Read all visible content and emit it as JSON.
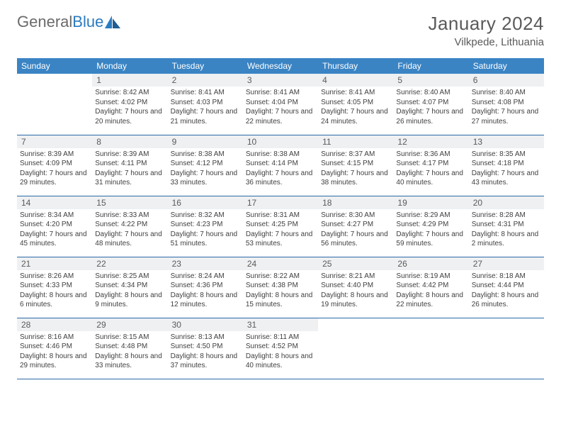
{
  "logo": {
    "text_a": "General",
    "text_b": "Blue"
  },
  "title": "January 2024",
  "location": "Vilkpede, Lithuania",
  "colors": {
    "header_bg": "#3a84c4",
    "header_text": "#ffffff",
    "daynum_bg": "#eef0f2",
    "border": "#2b6aa8",
    "text": "#404040",
    "logo_gray": "#6a6a6a",
    "logo_blue": "#2b7bbf"
  },
  "day_headers": [
    "Sunday",
    "Monday",
    "Tuesday",
    "Wednesday",
    "Thursday",
    "Friday",
    "Saturday"
  ],
  "weeks": [
    [
      {
        "n": ""
      },
      {
        "n": "1",
        "sr": "Sunrise: 8:42 AM",
        "ss": "Sunset: 4:02 PM",
        "dl": "Daylight: 7 hours and 20 minutes."
      },
      {
        "n": "2",
        "sr": "Sunrise: 8:41 AM",
        "ss": "Sunset: 4:03 PM",
        "dl": "Daylight: 7 hours and 21 minutes."
      },
      {
        "n": "3",
        "sr": "Sunrise: 8:41 AM",
        "ss": "Sunset: 4:04 PM",
        "dl": "Daylight: 7 hours and 22 minutes."
      },
      {
        "n": "4",
        "sr": "Sunrise: 8:41 AM",
        "ss": "Sunset: 4:05 PM",
        "dl": "Daylight: 7 hours and 24 minutes."
      },
      {
        "n": "5",
        "sr": "Sunrise: 8:40 AM",
        "ss": "Sunset: 4:07 PM",
        "dl": "Daylight: 7 hours and 26 minutes."
      },
      {
        "n": "6",
        "sr": "Sunrise: 8:40 AM",
        "ss": "Sunset: 4:08 PM",
        "dl": "Daylight: 7 hours and 27 minutes."
      }
    ],
    [
      {
        "n": "7",
        "sr": "Sunrise: 8:39 AM",
        "ss": "Sunset: 4:09 PM",
        "dl": "Daylight: 7 hours and 29 minutes."
      },
      {
        "n": "8",
        "sr": "Sunrise: 8:39 AM",
        "ss": "Sunset: 4:11 PM",
        "dl": "Daylight: 7 hours and 31 minutes."
      },
      {
        "n": "9",
        "sr": "Sunrise: 8:38 AM",
        "ss": "Sunset: 4:12 PM",
        "dl": "Daylight: 7 hours and 33 minutes."
      },
      {
        "n": "10",
        "sr": "Sunrise: 8:38 AM",
        "ss": "Sunset: 4:14 PM",
        "dl": "Daylight: 7 hours and 36 minutes."
      },
      {
        "n": "11",
        "sr": "Sunrise: 8:37 AM",
        "ss": "Sunset: 4:15 PM",
        "dl": "Daylight: 7 hours and 38 minutes."
      },
      {
        "n": "12",
        "sr": "Sunrise: 8:36 AM",
        "ss": "Sunset: 4:17 PM",
        "dl": "Daylight: 7 hours and 40 minutes."
      },
      {
        "n": "13",
        "sr": "Sunrise: 8:35 AM",
        "ss": "Sunset: 4:18 PM",
        "dl": "Daylight: 7 hours and 43 minutes."
      }
    ],
    [
      {
        "n": "14",
        "sr": "Sunrise: 8:34 AM",
        "ss": "Sunset: 4:20 PM",
        "dl": "Daylight: 7 hours and 45 minutes."
      },
      {
        "n": "15",
        "sr": "Sunrise: 8:33 AM",
        "ss": "Sunset: 4:22 PM",
        "dl": "Daylight: 7 hours and 48 minutes."
      },
      {
        "n": "16",
        "sr": "Sunrise: 8:32 AM",
        "ss": "Sunset: 4:23 PM",
        "dl": "Daylight: 7 hours and 51 minutes."
      },
      {
        "n": "17",
        "sr": "Sunrise: 8:31 AM",
        "ss": "Sunset: 4:25 PM",
        "dl": "Daylight: 7 hours and 53 minutes."
      },
      {
        "n": "18",
        "sr": "Sunrise: 8:30 AM",
        "ss": "Sunset: 4:27 PM",
        "dl": "Daylight: 7 hours and 56 minutes."
      },
      {
        "n": "19",
        "sr": "Sunrise: 8:29 AM",
        "ss": "Sunset: 4:29 PM",
        "dl": "Daylight: 7 hours and 59 minutes."
      },
      {
        "n": "20",
        "sr": "Sunrise: 8:28 AM",
        "ss": "Sunset: 4:31 PM",
        "dl": "Daylight: 8 hours and 2 minutes."
      }
    ],
    [
      {
        "n": "21",
        "sr": "Sunrise: 8:26 AM",
        "ss": "Sunset: 4:33 PM",
        "dl": "Daylight: 8 hours and 6 minutes."
      },
      {
        "n": "22",
        "sr": "Sunrise: 8:25 AM",
        "ss": "Sunset: 4:34 PM",
        "dl": "Daylight: 8 hours and 9 minutes."
      },
      {
        "n": "23",
        "sr": "Sunrise: 8:24 AM",
        "ss": "Sunset: 4:36 PM",
        "dl": "Daylight: 8 hours and 12 minutes."
      },
      {
        "n": "24",
        "sr": "Sunrise: 8:22 AM",
        "ss": "Sunset: 4:38 PM",
        "dl": "Daylight: 8 hours and 15 minutes."
      },
      {
        "n": "25",
        "sr": "Sunrise: 8:21 AM",
        "ss": "Sunset: 4:40 PM",
        "dl": "Daylight: 8 hours and 19 minutes."
      },
      {
        "n": "26",
        "sr": "Sunrise: 8:19 AM",
        "ss": "Sunset: 4:42 PM",
        "dl": "Daylight: 8 hours and 22 minutes."
      },
      {
        "n": "27",
        "sr": "Sunrise: 8:18 AM",
        "ss": "Sunset: 4:44 PM",
        "dl": "Daylight: 8 hours and 26 minutes."
      }
    ],
    [
      {
        "n": "28",
        "sr": "Sunrise: 8:16 AM",
        "ss": "Sunset: 4:46 PM",
        "dl": "Daylight: 8 hours and 29 minutes."
      },
      {
        "n": "29",
        "sr": "Sunrise: 8:15 AM",
        "ss": "Sunset: 4:48 PM",
        "dl": "Daylight: 8 hours and 33 minutes."
      },
      {
        "n": "30",
        "sr": "Sunrise: 8:13 AM",
        "ss": "Sunset: 4:50 PM",
        "dl": "Daylight: 8 hours and 37 minutes."
      },
      {
        "n": "31",
        "sr": "Sunrise: 8:11 AM",
        "ss": "Sunset: 4:52 PM",
        "dl": "Daylight: 8 hours and 40 minutes."
      },
      {
        "n": ""
      },
      {
        "n": ""
      },
      {
        "n": ""
      }
    ]
  ]
}
